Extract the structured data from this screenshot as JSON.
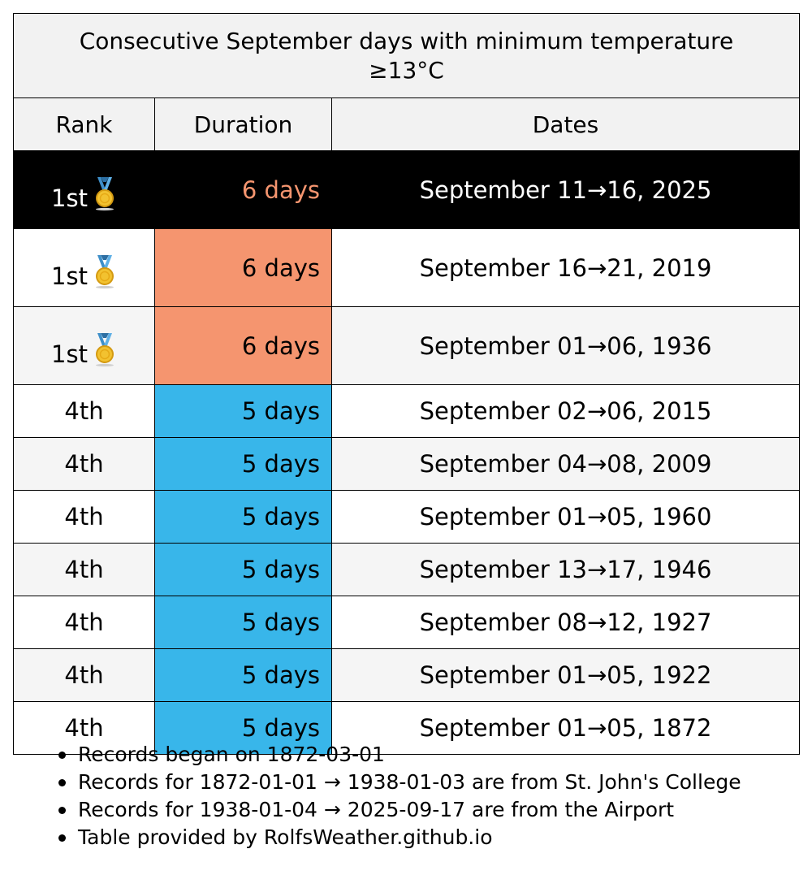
{
  "chart_data": {
    "type": "table",
    "title": "Consecutive September days with minimum temperature ≥13°C",
    "columns": [
      "Rank",
      "Duration",
      "Dates"
    ],
    "rows": [
      {
        "rank": "1st",
        "medal": true,
        "duration": "6 days",
        "dates": "September 11→16, 2025",
        "highlight": true
      },
      {
        "rank": "1st",
        "medal": true,
        "duration": "6 days",
        "dates": "September 16→21, 2019",
        "highlight": false
      },
      {
        "rank": "1st",
        "medal": true,
        "duration": "6 days",
        "dates": "September 01→06, 1936",
        "highlight": false
      },
      {
        "rank": "4th",
        "medal": false,
        "duration": "5 days",
        "dates": "September 02→06, 2015",
        "highlight": false
      },
      {
        "rank": "4th",
        "medal": false,
        "duration": "5 days",
        "dates": "September 04→08, 2009",
        "highlight": false
      },
      {
        "rank": "4th",
        "medal": false,
        "duration": "5 days",
        "dates": "September 01→05, 1960",
        "highlight": false
      },
      {
        "rank": "4th",
        "medal": false,
        "duration": "5 days",
        "dates": "September 13→17, 1946",
        "highlight": false
      },
      {
        "rank": "4th",
        "medal": false,
        "duration": "5 days",
        "dates": "September 08→12, 1927",
        "highlight": false
      },
      {
        "rank": "4th",
        "medal": false,
        "duration": "5 days",
        "dates": "September 01→05, 1922",
        "highlight": false
      },
      {
        "rank": "4th",
        "medal": false,
        "duration": "5 days",
        "dates": "September 01→05, 1872",
        "highlight": false
      }
    ],
    "notes": [
      "Records began on 1872-03-01",
      "Records for 1872-01-01 → 1938-01-03 are from St. John's College",
      "Records for 1938-01-04 → 2025-09-17 are from the Airport",
      "Table provided by RolfsWeather.github.io"
    ]
  },
  "colors": {
    "header_bg": "#f2f2f2",
    "row_even_bg": "#f5f5f5",
    "row_odd_bg": "#ffffff",
    "highlight_bg": "#000000",
    "highlight_text": "#ffffff",
    "duration_6_bg": "#f5956f",
    "duration_5_bg": "#38b6ea",
    "border": "#000000"
  },
  "icons": {
    "medal": "gold-medal-icon"
  }
}
